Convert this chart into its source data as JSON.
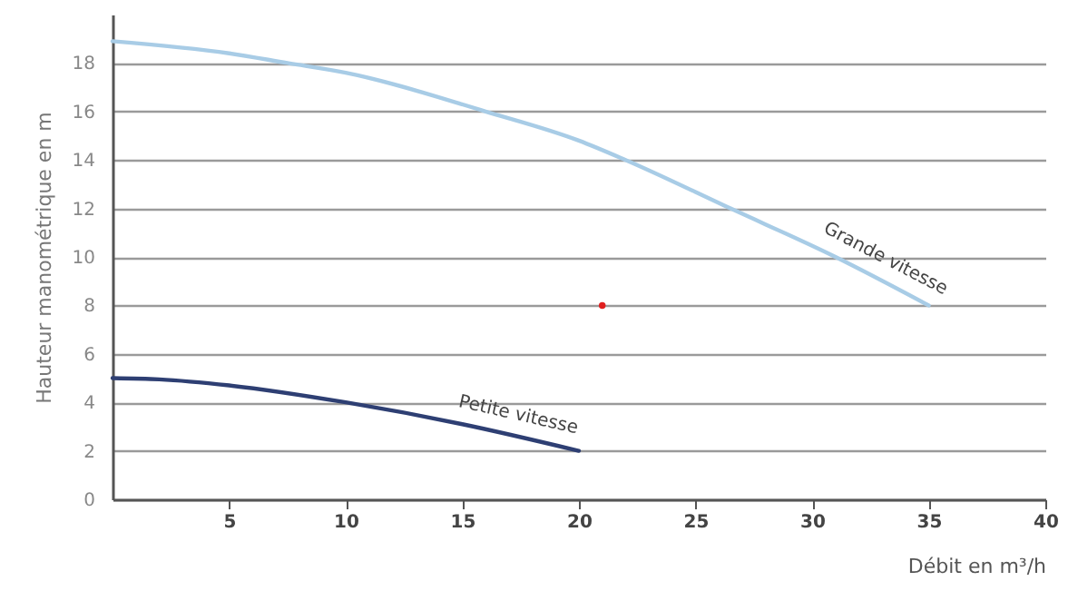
{
  "chart_data": {
    "type": "line",
    "xlabel": "Débit en m³/h",
    "ylabel": "Hauteur manométrique en m",
    "xlim": [
      0,
      40
    ],
    "xticks": [
      5,
      10,
      15,
      20,
      25,
      30,
      35,
      40
    ],
    "ylim": [
      0,
      20
    ],
    "yticks": [
      0,
      2,
      4,
      6,
      8,
      10,
      12,
      14,
      16,
      18
    ],
    "grid": "y",
    "series": [
      {
        "name": "Grande vitesse",
        "color": "#a8cce6",
        "x": [
          0,
          5,
          7.5,
          10,
          16,
          20,
          22,
          26.5,
          31,
          35
        ],
        "values": [
          18.9,
          18.4,
          18,
          17.6,
          16,
          14.8,
          14,
          12,
          10,
          8
        ]
      },
      {
        "name": "Petite vitesse",
        "color": "#2e3f73",
        "x": [
          0,
          2,
          5,
          10,
          15,
          20
        ],
        "values": [
          5,
          4.95,
          4.7,
          4.0,
          3.1,
          2.0
        ]
      },
      {
        "type": "scatter",
        "color": "#e02020",
        "marker": "circle",
        "x": [
          21
        ],
        "values": [
          8
        ]
      }
    ]
  }
}
